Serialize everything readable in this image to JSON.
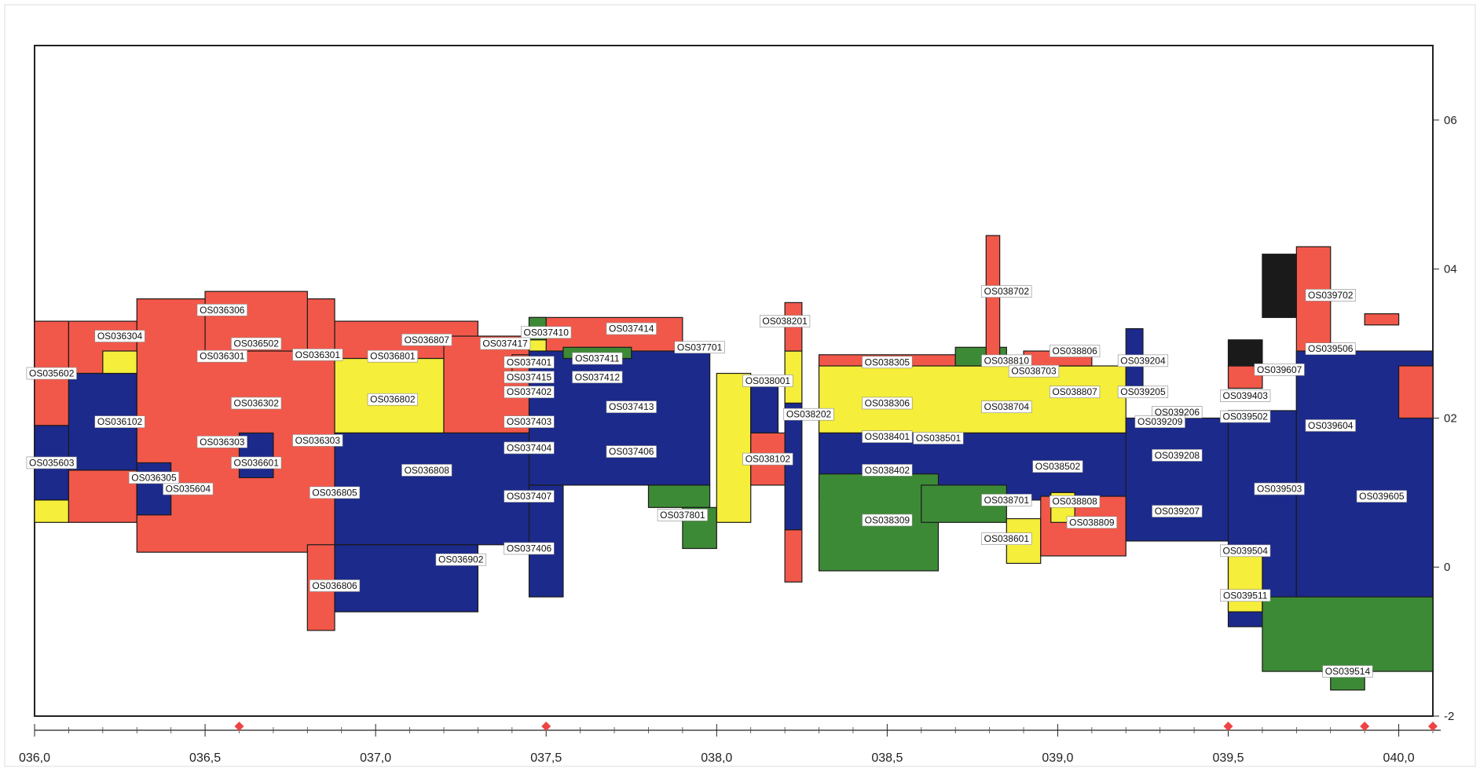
{
  "chart_data": {
    "type": "heatmap",
    "title": "",
    "xlabel": "",
    "ylabel": "",
    "xlim": [
      36.0,
      40.1
    ],
    "ylim": [
      -2.0,
      7.0
    ],
    "x_ticks": [
      {
        "value": 36.0,
        "label": "036,0"
      },
      {
        "value": 36.5,
        "label": "036,5"
      },
      {
        "value": 37.0,
        "label": "037,0"
      },
      {
        "value": 37.5,
        "label": "037,5"
      },
      {
        "value": 38.0,
        "label": "038,0"
      },
      {
        "value": 38.5,
        "label": "038,5"
      },
      {
        "value": 39.0,
        "label": "039,0"
      },
      {
        "value": 39.5,
        "label": "039,5"
      },
      {
        "value": 40.0,
        "label": "040,0"
      }
    ],
    "y_ticks": [
      {
        "value": 6,
        "label": "06"
      },
      {
        "value": 4,
        "label": "04"
      },
      {
        "value": 2,
        "label": "02"
      },
      {
        "value": 0,
        "label": "0"
      },
      {
        "value": -2,
        "label": "-2"
      }
    ],
    "colors": {
      "red": "#f2584a",
      "yellow": "#f5ee3a",
      "blue": "#1c2a8c",
      "green": "#3d8a36",
      "black": "#1a1a1a",
      "outline": "#1a1a1a",
      "marker": "#ee4444"
    },
    "blocks": [
      {
        "c": "red",
        "x0": 36.0,
        "x1": 36.1,
        "y0": 1.9,
        "y1": 3.3
      },
      {
        "c": "blue",
        "x0": 36.0,
        "x1": 36.1,
        "y0": 0.9,
        "y1": 1.9
      },
      {
        "c": "yellow",
        "x0": 36.0,
        "x1": 36.1,
        "y0": 0.6,
        "y1": 0.9
      },
      {
        "c": "red",
        "x0": 36.1,
        "x1": 36.3,
        "y0": 2.6,
        "y1": 3.3
      },
      {
        "c": "blue",
        "x0": 36.1,
        "x1": 36.3,
        "y0": 1.3,
        "y1": 2.6
      },
      {
        "c": "red",
        "x0": 36.1,
        "x1": 36.3,
        "y0": 0.6,
        "y1": 1.3
      },
      {
        "c": "red",
        "x0": 36.3,
        "x1": 36.88,
        "y0": 0.2,
        "y1": 3.6
      },
      {
        "c": "yellow",
        "x0": 36.2,
        "x1": 36.3,
        "y0": 2.6,
        "y1": 2.9
      },
      {
        "c": "red",
        "x0": 36.5,
        "x1": 36.8,
        "y0": 2.9,
        "y1": 3.7
      },
      {
        "c": "blue",
        "x0": 36.3,
        "x1": 36.4,
        "y0": 0.7,
        "y1": 1.4
      },
      {
        "c": "blue",
        "x0": 36.6,
        "x1": 36.7,
        "y0": 1.2,
        "y1": 1.8
      },
      {
        "c": "red",
        "x0": 36.8,
        "x1": 36.88,
        "y0": -0.85,
        "y1": 0.3
      },
      {
        "c": "red",
        "x0": 36.88,
        "x1": 37.3,
        "y0": 2.8,
        "y1": 3.3
      },
      {
        "c": "yellow",
        "x0": 36.88,
        "x1": 37.2,
        "y0": 1.8,
        "y1": 2.8
      },
      {
        "c": "red",
        "x0": 37.2,
        "x1": 37.45,
        "y0": 1.8,
        "y1": 3.1
      },
      {
        "c": "blue",
        "x0": 36.88,
        "x1": 37.45,
        "y0": 0.3,
        "y1": 1.8
      },
      {
        "c": "blue",
        "x0": 36.88,
        "x1": 37.3,
        "y0": -0.6,
        "y1": 0.3
      },
      {
        "c": "red",
        "x0": 37.45,
        "x1": 37.9,
        "y0": 2.9,
        "y1": 3.35
      },
      {
        "c": "green",
        "x0": 37.45,
        "x1": 37.5,
        "y0": 3.05,
        "y1": 3.35
      },
      {
        "c": "yellow",
        "x0": 37.45,
        "x1": 37.5,
        "y0": 2.85,
        "y1": 3.05
      },
      {
        "c": "red",
        "x0": 37.4,
        "x1": 37.5,
        "y0": 2.5,
        "y1": 2.85
      },
      {
        "c": "blue",
        "x0": 37.45,
        "x1": 37.98,
        "y0": 1.1,
        "y1": 2.9
      },
      {
        "c": "blue",
        "x0": 37.45,
        "x1": 37.55,
        "y0": -0.4,
        "y1": 1.1
      },
      {
        "c": "green",
        "x0": 37.55,
        "x1": 37.75,
        "y0": 2.8,
        "y1": 2.95
      },
      {
        "c": "green",
        "x0": 37.8,
        "x1": 37.98,
        "y0": 0.8,
        "y1": 1.1
      },
      {
        "c": "green",
        "x0": 37.9,
        "x1": 38.0,
        "y0": 0.25,
        "y1": 0.8
      },
      {
        "c": "yellow",
        "x0": 38.0,
        "x1": 38.1,
        "y0": 0.6,
        "y1": 2.6
      },
      {
        "c": "blue",
        "x0": 38.1,
        "x1": 38.18,
        "y0": 1.5,
        "y1": 2.5
      },
      {
        "c": "red",
        "x0": 38.1,
        "x1": 38.2,
        "y0": 1.1,
        "y1": 1.8
      },
      {
        "c": "yellow",
        "x0": 38.2,
        "x1": 38.25,
        "y0": 2.2,
        "y1": 2.9
      },
      {
        "c": "red",
        "x0": 38.2,
        "x1": 38.25,
        "y0": 2.9,
        "y1": 3.55
      },
      {
        "c": "blue",
        "x0": 38.2,
        "x1": 38.25,
        "y0": 0.5,
        "y1": 2.2
      },
      {
        "c": "red",
        "x0": 38.2,
        "x1": 38.25,
        "y0": -0.2,
        "y1": 0.5
      },
      {
        "c": "red",
        "x0": 38.3,
        "x1": 38.7,
        "y0": 2.6,
        "y1": 2.85
      },
      {
        "c": "yellow",
        "x0": 38.3,
        "x1": 39.2,
        "y0": 1.8,
        "y1": 2.7
      },
      {
        "c": "blue",
        "x0": 38.3,
        "x1": 39.5,
        "y0": 0.9,
        "y1": 1.8
      },
      {
        "c": "green",
        "x0": 38.3,
        "x1": 38.65,
        "y0": -0.05,
        "y1": 1.25
      },
      {
        "c": "green",
        "x0": 38.6,
        "x1": 38.85,
        "y0": 0.6,
        "y1": 1.1
      },
      {
        "c": "yellow",
        "x0": 38.85,
        "x1": 38.95,
        "y0": 0.05,
        "y1": 0.65
      },
      {
        "c": "green",
        "x0": 38.7,
        "x1": 38.85,
        "y0": 2.7,
        "y1": 2.95
      },
      {
        "c": "red",
        "x0": 38.79,
        "x1": 38.83,
        "y0": 2.7,
        "y1": 4.45
      },
      {
        "c": "red",
        "x0": 38.9,
        "x1": 39.1,
        "y0": 2.7,
        "y1": 2.9
      },
      {
        "c": "red",
        "x0": 38.95,
        "x1": 39.2,
        "y0": 0.15,
        "y1": 0.95
      },
      {
        "c": "yellow",
        "x0": 38.98,
        "x1": 39.05,
        "y0": 0.6,
        "y1": 1.0
      },
      {
        "c": "blue",
        "x0": 39.2,
        "x1": 39.25,
        "y0": 3.2,
        "y1": 2.4
      },
      {
        "c": "blue",
        "x0": 39.2,
        "x1": 39.5,
        "y0": 0.35,
        "y1": 2.0
      },
      {
        "c": "blue",
        "x0": 39.5,
        "x1": 39.7,
        "y0": -0.8,
        "y1": 2.1
      },
      {
        "c": "yellow",
        "x0": 39.5,
        "x1": 39.6,
        "y0": -0.6,
        "y1": 0.2
      },
      {
        "c": "red",
        "x0": 39.5,
        "x1": 39.6,
        "y0": 2.4,
        "y1": 2.7
      },
      {
        "c": "black",
        "x0": 39.5,
        "x1": 39.6,
        "y0": 2.7,
        "y1": 3.05
      },
      {
        "c": "black",
        "x0": 39.6,
        "x1": 39.7,
        "y0": 3.35,
        "y1": 4.2
      },
      {
        "c": "red",
        "x0": 39.7,
        "x1": 39.8,
        "y0": 2.1,
        "y1": 4.3
      },
      {
        "c": "blue",
        "x0": 39.7,
        "x1": 40.1,
        "y0": -1.2,
        "y1": 2.9
      },
      {
        "c": "green",
        "x0": 39.6,
        "x1": 40.1,
        "y0": -1.4,
        "y1": -0.4
      },
      {
        "c": "green",
        "x0": 39.8,
        "x1": 39.9,
        "y0": -1.65,
        "y1": -1.4
      },
      {
        "c": "red",
        "x0": 39.9,
        "x1": 40.0,
        "y0": 3.25,
        "y1": 3.4
      },
      {
        "c": "red",
        "x0": 40.0,
        "x1": 40.1,
        "y0": 2.0,
        "y1": 2.7
      }
    ],
    "annotations": [
      {
        "label": "OS035602",
        "x": 36.05,
        "y": 2.6
      },
      {
        "label": "OS035603",
        "x": 36.05,
        "y": 1.4
      },
      {
        "label": "OS035604",
        "x": 36.45,
        "y": 1.05
      },
      {
        "label": "OS036304",
        "x": 36.25,
        "y": 3.1
      },
      {
        "label": "OS036306",
        "x": 36.55,
        "y": 3.45
      },
      {
        "label": "OS036502",
        "x": 36.65,
        "y": 3.0
      },
      {
        "label": "OS036301",
        "x": 36.55,
        "y": 2.83
      },
      {
        "label": "OS036301",
        "x": 36.83,
        "y": 2.85
      },
      {
        "label": "OS036302",
        "x": 36.65,
        "y": 2.2
      },
      {
        "label": "OS036102",
        "x": 36.25,
        "y": 1.95
      },
      {
        "label": "OS036303",
        "x": 36.55,
        "y": 1.68
      },
      {
        "label": "OS036303",
        "x": 36.83,
        "y": 1.7
      },
      {
        "label": "OS036601",
        "x": 36.65,
        "y": 1.4
      },
      {
        "label": "OS036305",
        "x": 36.35,
        "y": 1.2
      },
      {
        "label": "OS036805",
        "x": 36.88,
        "y": 1.0
      },
      {
        "label": "OS036806",
        "x": 36.88,
        "y": -0.25
      },
      {
        "label": "OS036801",
        "x": 37.05,
        "y": 2.83
      },
      {
        "label": "OS036807",
        "x": 37.15,
        "y": 3.05
      },
      {
        "label": "OS036802",
        "x": 37.05,
        "y": 2.25
      },
      {
        "label": "OS036808",
        "x": 37.15,
        "y": 1.3
      },
      {
        "label": "OS036902",
        "x": 37.25,
        "y": 0.1
      },
      {
        "label": "OS037410",
        "x": 37.5,
        "y": 3.15
      },
      {
        "label": "OS037417",
        "x": 37.38,
        "y": 3.0
      },
      {
        "label": "OS037401",
        "x": 37.45,
        "y": 2.75
      },
      {
        "label": "OS037415",
        "x": 37.45,
        "y": 2.55
      },
      {
        "label": "OS037402",
        "x": 37.45,
        "y": 2.35
      },
      {
        "label": "OS037403",
        "x": 37.45,
        "y": 1.95
      },
      {
        "label": "OS037404",
        "x": 37.45,
        "y": 1.6
      },
      {
        "label": "OS037407",
        "x": 37.45,
        "y": 0.95
      },
      {
        "label": "OS037406",
        "x": 37.45,
        "y": 0.25
      },
      {
        "label": "OS037414",
        "x": 37.75,
        "y": 3.2
      },
      {
        "label": "OS037411",
        "x": 37.65,
        "y": 2.8
      },
      {
        "label": "OS037412",
        "x": 37.65,
        "y": 2.55
      },
      {
        "label": "OS037413",
        "x": 37.75,
        "y": 2.15
      },
      {
        "label": "OS037406",
        "x": 37.75,
        "y": 1.55
      },
      {
        "label": "OS037701",
        "x": 37.95,
        "y": 2.95
      },
      {
        "label": "OS037801",
        "x": 37.9,
        "y": 0.7
      },
      {
        "label": "OS038001",
        "x": 38.15,
        "y": 2.5
      },
      {
        "label": "OS038201",
        "x": 38.2,
        "y": 3.3
      },
      {
        "label": "OS038202",
        "x": 38.27,
        "y": 2.05
      },
      {
        "label": "OS038102",
        "x": 38.15,
        "y": 1.45
      },
      {
        "label": "OS038305",
        "x": 38.5,
        "y": 2.75
      },
      {
        "label": "OS038306",
        "x": 38.5,
        "y": 2.2
      },
      {
        "label": "OS038401",
        "x": 38.5,
        "y": 1.75
      },
      {
        "label": "OS038402",
        "x": 38.5,
        "y": 1.3
      },
      {
        "label": "OS038309",
        "x": 38.5,
        "y": 0.63
      },
      {
        "label": "OS038501",
        "x": 38.65,
        "y": 1.73
      },
      {
        "label": "OS038502",
        "x": 39.0,
        "y": 1.35
      },
      {
        "label": "OS038702",
        "x": 38.85,
        "y": 3.7
      },
      {
        "label": "OS038810",
        "x": 38.85,
        "y": 2.77
      },
      {
        "label": "OS038703",
        "x": 38.93,
        "y": 2.63
      },
      {
        "label": "OS038704",
        "x": 38.85,
        "y": 2.15
      },
      {
        "label": "OS038806",
        "x": 39.05,
        "y": 2.9
      },
      {
        "label": "OS038807",
        "x": 39.05,
        "y": 2.35
      },
      {
        "label": "OS038701",
        "x": 38.85,
        "y": 0.9
      },
      {
        "label": "OS038808",
        "x": 39.05,
        "y": 0.88
      },
      {
        "label": "OS038809",
        "x": 39.1,
        "y": 0.6
      },
      {
        "label": "OS038601",
        "x": 38.85,
        "y": 0.38
      },
      {
        "label": "OS039204",
        "x": 39.25,
        "y": 2.77
      },
      {
        "label": "OS039205",
        "x": 39.25,
        "y": 2.35
      },
      {
        "label": "OS039206",
        "x": 39.35,
        "y": 2.08
      },
      {
        "label": "OS039209",
        "x": 39.3,
        "y": 1.95
      },
      {
        "label": "OS039208",
        "x": 39.35,
        "y": 1.5
      },
      {
        "label": "OS039207",
        "x": 39.35,
        "y": 0.75
      },
      {
        "label": "OS039403",
        "x": 39.55,
        "y": 2.3
      },
      {
        "label": "OS039502",
        "x": 39.55,
        "y": 2.02
      },
      {
        "label": "OS039503",
        "x": 39.65,
        "y": 1.05
      },
      {
        "label": "OS039504",
        "x": 39.55,
        "y": 0.22
      },
      {
        "label": "OS039511",
        "x": 39.55,
        "y": -0.38
      },
      {
        "label": "OS039506",
        "x": 39.8,
        "y": 2.93
      },
      {
        "label": "OS039607",
        "x": 39.65,
        "y": 2.65
      },
      {
        "label": "OS039604",
        "x": 39.8,
        "y": 1.9
      },
      {
        "label": "OS039605",
        "x": 39.95,
        "y": 0.95
      },
      {
        "label": "OS039514",
        "x": 39.85,
        "y": -1.4
      },
      {
        "label": "OS039702",
        "x": 39.8,
        "y": 3.65
      }
    ],
    "markers": [
      36.6,
      37.5,
      39.5,
      39.9,
      40.1
    ]
  }
}
